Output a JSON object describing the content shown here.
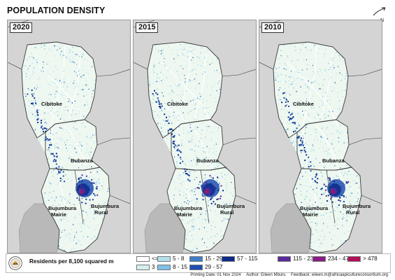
{
  "title": "POPULATION DENSITY",
  "panels": [
    {
      "year": "2020",
      "labels": {
        "north": "Cibitoke",
        "mid": "Bubanza",
        "sw1": "Bujumbura",
        "sw2": "Mairie",
        "se1": "Bujumbura",
        "se2": "Rural"
      }
    },
    {
      "year": "2015",
      "labels": {
        "north": "Cibitoke",
        "mid": "Bubanza",
        "sw1": "Bujumbura",
        "sw2": "Mairie",
        "se1": "Bujumbura",
        "se2": "Rural"
      }
    },
    {
      "year": "2010",
      "labels": {
        "north": "Cibitoke",
        "mid": "Bubanza",
        "sw1": "Bujumbura",
        "sw2": "Mairie",
        "se1": "Bujumbura",
        "se2": "Rural"
      }
    }
  ],
  "legend": {
    "caption": "Residents per 8,100 squared m",
    "classes": [
      {
        "label": "<= 3",
        "color": "#ffffff"
      },
      {
        "label": "3 - 5",
        "color": "#d6f0ec"
      },
      {
        "label": "5 - 8",
        "color": "#b3e0ec"
      },
      {
        "label": "8 - 15",
        "color": "#7fc1e6"
      },
      {
        "label": "15 - 29",
        "color": "#3f7fc8"
      },
      {
        "label": "29 - 57",
        "color": "#1f4fb0"
      },
      {
        "label": "57 - 115",
        "color": "#0b2a8a"
      },
      {
        "label": "115 - 234",
        "color": "#5a2a9a"
      },
      {
        "label": "234 - 478",
        "color": "#8a1a88"
      },
      {
        "label": "> 478",
        "color": "#b0105a"
      }
    ]
  },
  "footer": {
    "date": "Printing Date: 01 Nov 2024",
    "author": "Author: Eileen Mburu",
    "feedback": "Feedback: eileen.m@africaapicultureconsortium.org"
  },
  "colors": {
    "background": "#d4d4d4",
    "land": "#eef8f0",
    "lake": "#b9b9b9",
    "border": "#3a3a3a",
    "road": "#ffffff"
  }
}
